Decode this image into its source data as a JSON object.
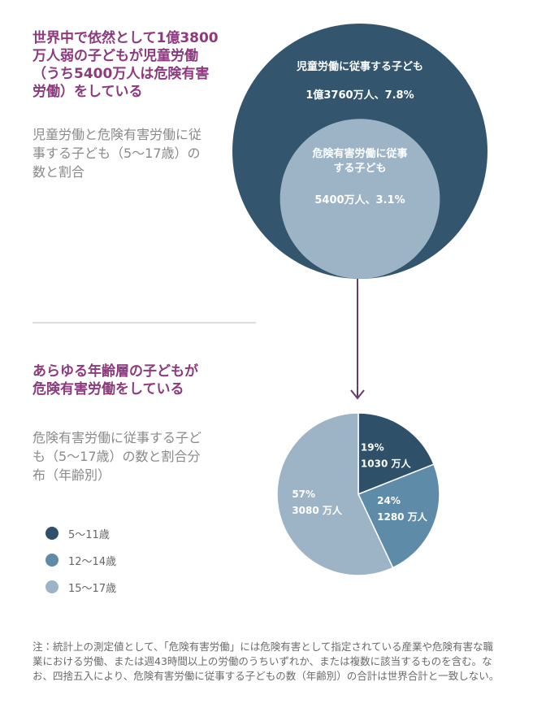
{
  "chart_data": [
    {
      "type": "nested-circle",
      "title": "世界中で依然として1億3800万人弱の子どもが児童労働（うち5400万人は危険有害労働）をしている",
      "subtitle": "児童労働と危険有害労働に従事する子ども（5～17歳）の数と割合",
      "series": [
        {
          "name": "児童労働に従事する子ども",
          "color": "#33566e",
          "values": [
            13760
          ],
          "value_labels": [
            "1億3760万人、7.8%"
          ]
        },
        {
          "name": "危険有害労働に従事する子ども",
          "color": "#9db4c7",
          "values": [
            5400
          ],
          "value_labels": [
            "5400万人、3.1%"
          ]
        }
      ]
    },
    {
      "type": "pie",
      "title": "あらゆる年齢層の子どもが危険有害労働をしている",
      "subtitle": "危険有害労働に従事する子ども（5～17歳）の数と割合分布（年齢別）",
      "categories": [
        "5～11歳",
        "12～14歳",
        "15～17歳"
      ],
      "values": [
        19,
        24,
        57
      ],
      "value_labels": [
        "19%",
        "24%",
        "57%"
      ],
      "counts": [
        1030,
        1280,
        3080
      ],
      "count_labels": [
        "1030 万人",
        "1280 万人",
        "3080 万人"
      ],
      "colors": [
        "#2f5069",
        "#5e8ca8",
        "#9db4c7"
      ]
    }
  ],
  "note": "注：統計上の測定値として、「危険有害労働」には危険有害として指定されている産業や危険有害な職業における労働、または週43時間以上の労働のうちいずれか、または複数に該当するものを含む。なお、四捨五入により、危険有害労働に従事する子どもの数（年齢別）の合計は世界合計と一致しない。"
}
